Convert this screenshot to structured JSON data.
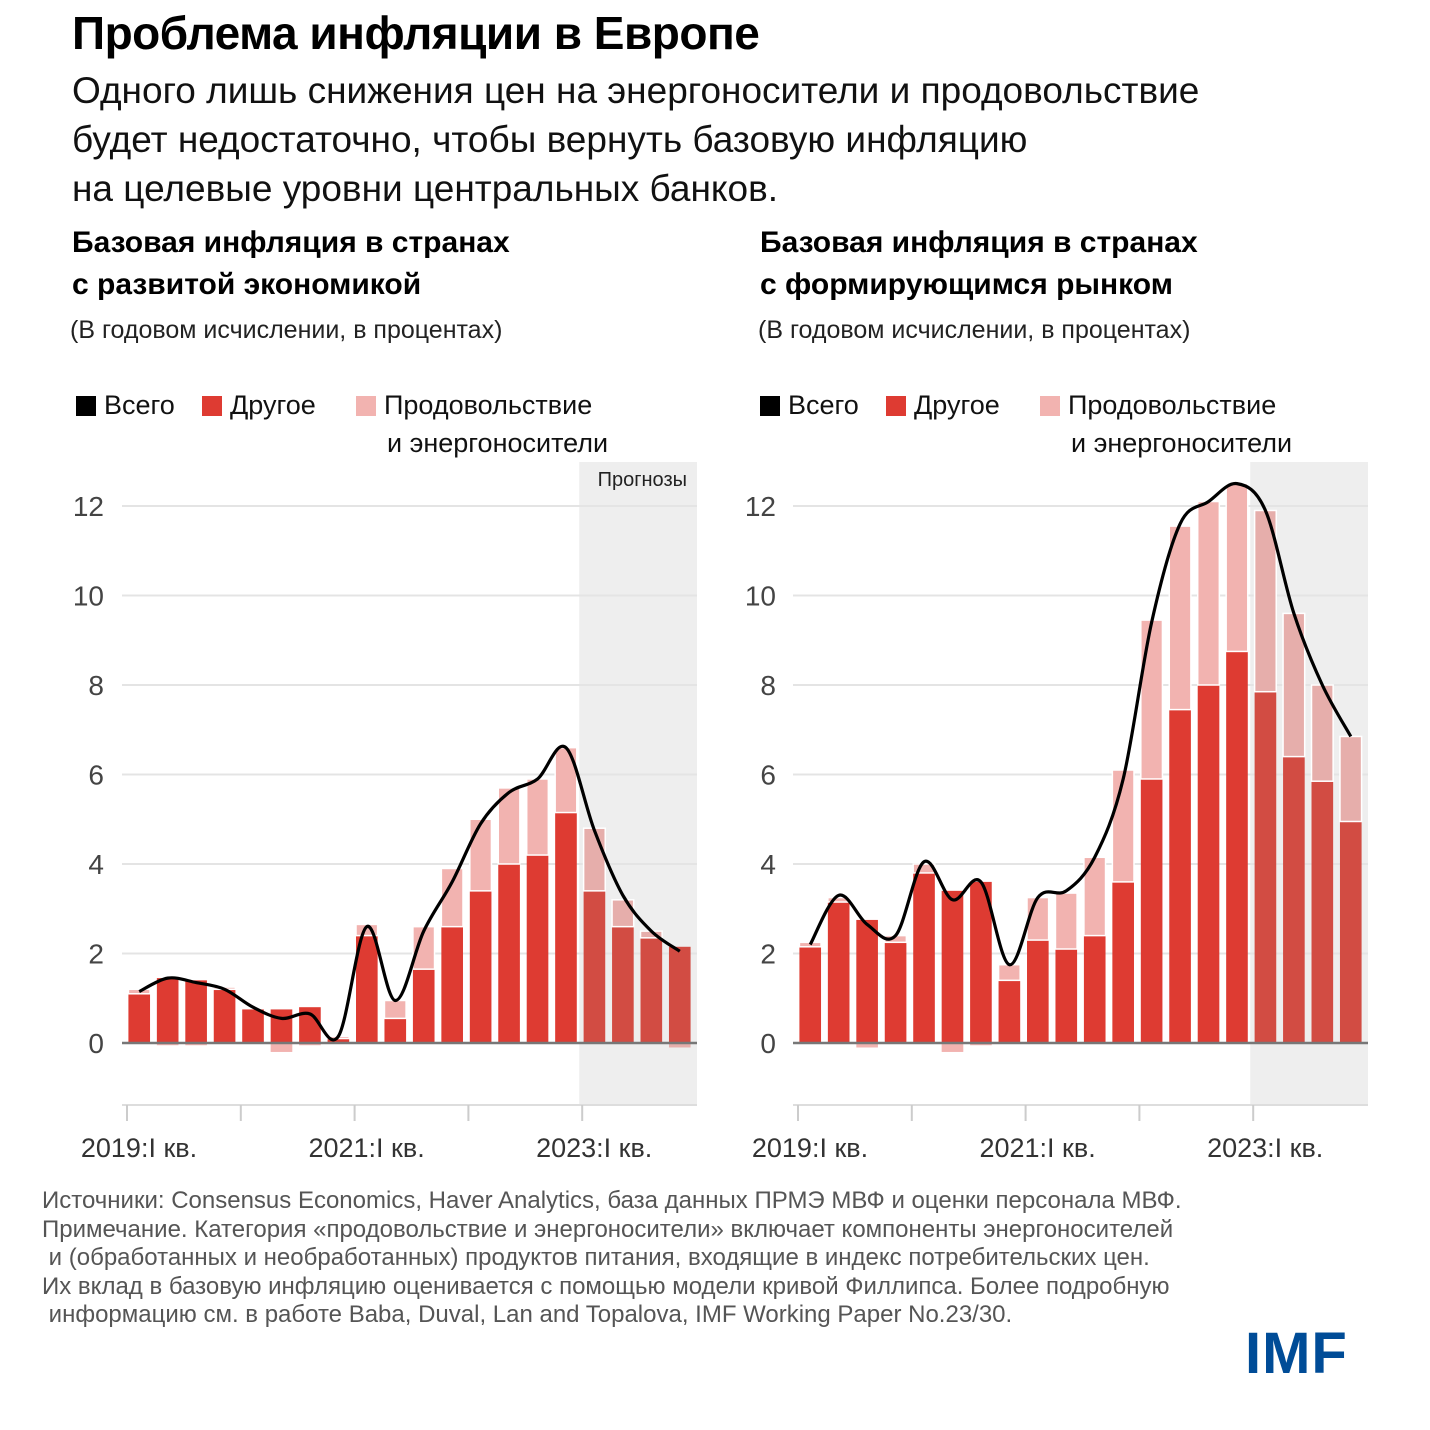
{
  "title": "Проблема инфляции в Европе",
  "subtitle": "Одного лишь снижения цен на энергоносители и продовольствие будет недостаточно, чтобы вернуть базовую инфляцию на целевые уровни центральных банков.",
  "subtitle_lines": [
    "Одного лишь снижения цен на энергоносители и продовольствие",
    "будет недостаточно, чтобы вернуть базовую инфляцию",
    "на целевые уровни центральных банков."
  ],
  "colors": {
    "total": "#000000",
    "other": "#de3b32",
    "other_forecast": "#d24c43",
    "food_energy": "#f2b3b0",
    "food_energy_forecast": "#e6aeab",
    "forecast_bg": "#eeeeee",
    "imf_blue": "#004c97"
  },
  "legend": {
    "total": "Всего",
    "other": "Другое",
    "food_energy_1": "Продовольствие",
    "food_energy_2": "и энергоносители"
  },
  "forecast_label": "Прогнозы",
  "chart_data": [
    {
      "type": "bar",
      "stacked": true,
      "title_line1": "Базовая инфляция в странах",
      "title_line2": "с развитой экономикой",
      "units": "(В годовом исчислении, в процентах)",
      "xlabel": "",
      "ylabel": "",
      "ylim": [
        -1.4,
        13
      ],
      "yticks": [
        0,
        2,
        4,
        6,
        8,
        10,
        12
      ],
      "grid": true,
      "legend_position": "top-left",
      "forecast_start_index": 16,
      "xtick_labels": [
        {
          "index": 0,
          "label": "2019:I кв."
        },
        {
          "index": 8,
          "label": "2021:I кв."
        },
        {
          "index": 16,
          "label": "2023:I кв."
        }
      ],
      "xtick_marks": [
        0,
        4,
        8,
        12,
        16
      ],
      "categories": [
        "2019Q1",
        "2019Q2",
        "2019Q3",
        "2019Q4",
        "2020Q1",
        "2020Q2",
        "2020Q3",
        "2020Q4",
        "2021Q1",
        "2021Q2",
        "2021Q3",
        "2021Q4",
        "2022Q1",
        "2022Q2",
        "2022Q3",
        "2022Q4",
        "2023Q1",
        "2023Q2",
        "2023Q3",
        "2023Q4"
      ],
      "series": [
        {
          "name": "Другое",
          "kind": "bar",
          "values": [
            1.1,
            1.45,
            1.4,
            1.2,
            0.75,
            0.75,
            0.8,
            0.1,
            2.4,
            0.55,
            1.65,
            2.6,
            3.4,
            4.0,
            4.2,
            5.15,
            3.4,
            2.6,
            2.35,
            2.15
          ]
        },
        {
          "name": "Продовольствие и энергоносители",
          "kind": "bar",
          "values": [
            0.1,
            -0.05,
            -0.05,
            0.05,
            0.0,
            -0.2,
            -0.05,
            0.05,
            0.25,
            0.4,
            0.95,
            1.3,
            1.6,
            1.7,
            1.7,
            1.45,
            1.4,
            0.6,
            0.15,
            -0.1
          ]
        },
        {
          "name": "Всего",
          "kind": "line",
          "values": [
            1.15,
            1.45,
            1.35,
            1.2,
            0.8,
            0.55,
            0.65,
            0.15,
            2.6,
            0.95,
            2.5,
            3.6,
            4.9,
            5.6,
            5.9,
            6.6,
            4.75,
            3.3,
            2.5,
            2.05
          ]
        }
      ]
    },
    {
      "type": "bar",
      "stacked": true,
      "title_line1": "Базовая инфляция в странах",
      "title_line2": "с формирующимся рынком",
      "units": "(В годовом исчислении, в процентах)",
      "xlabel": "",
      "ylabel": "",
      "ylim": [
        -1.4,
        13
      ],
      "yticks": [
        0,
        2,
        4,
        6,
        8,
        10,
        12
      ],
      "grid": true,
      "legend_position": "top-left",
      "forecast_start_index": 16,
      "xtick_labels": [
        {
          "index": 0,
          "label": "2019:I кв."
        },
        {
          "index": 8,
          "label": "2021:I кв."
        },
        {
          "index": 16,
          "label": "2023:I кв."
        }
      ],
      "xtick_marks": [
        0,
        4,
        8,
        12,
        16
      ],
      "categories": [
        "2019Q1",
        "2019Q2",
        "2019Q3",
        "2019Q4",
        "2020Q1",
        "2020Q2",
        "2020Q3",
        "2020Q4",
        "2021Q1",
        "2021Q2",
        "2021Q3",
        "2021Q4",
        "2022Q1",
        "2022Q2",
        "2022Q3",
        "2022Q4",
        "2023Q1",
        "2023Q2",
        "2023Q3",
        "2023Q4"
      ],
      "series": [
        {
          "name": "Другое",
          "kind": "bar",
          "values": [
            2.15,
            3.15,
            2.75,
            2.25,
            3.8,
            3.4,
            3.6,
            1.4,
            2.3,
            2.1,
            2.4,
            3.6,
            5.9,
            7.45,
            8.0,
            8.75,
            7.85,
            6.4,
            5.85,
            4.95
          ]
        },
        {
          "name": "Продовольствие и энергоносители",
          "kind": "bar",
          "values": [
            0.1,
            0.1,
            -0.1,
            0.15,
            0.2,
            -0.2,
            -0.05,
            0.35,
            0.95,
            1.25,
            1.75,
            2.5,
            3.55,
            4.1,
            4.1,
            3.75,
            4.05,
            3.2,
            2.15,
            1.9
          ]
        },
        {
          "name": "Всего",
          "kind": "line",
          "values": [
            2.2,
            3.3,
            2.65,
            2.4,
            4.05,
            3.2,
            3.6,
            1.75,
            3.25,
            3.4,
            4.15,
            5.9,
            9.4,
            11.6,
            12.1,
            12.5,
            11.9,
            9.6,
            8.0,
            6.85
          ]
        }
      ]
    }
  ],
  "footer_lines": [
    "Источники: Consensus Economics, Haver Analytics, база данных ПРМЭ МВФ и оценки персонала МВФ.",
    "Примечание. Категория «продовольствие и энергоносители» включает компоненты энергоносителей",
    " и (обработанных и необработанных) продуктов питания, входящие в индекс потребительских цен.",
    "Их вклад в базовую инфляцию оценивается с помощью модели кривой Филлипса. Более подробную",
    " информацию см. в работе Baba, Duval, Lan and Topalova, IMF Working Paper No.23/30."
  ],
  "logo": "IMF"
}
